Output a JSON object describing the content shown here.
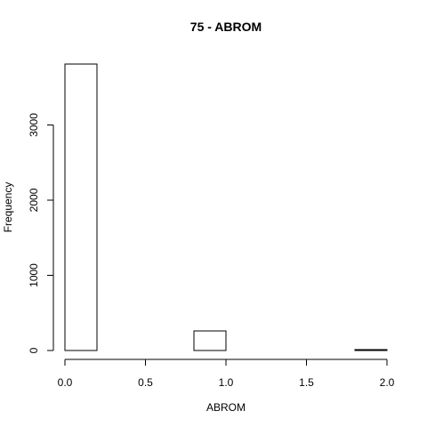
{
  "chart_data": {
    "type": "bar",
    "title": "75 - ABROM",
    "xlabel": "ABROM",
    "ylabel": "Frequency",
    "bins": [
      {
        "x0": 0.0,
        "x1": 0.2,
        "value": 3810
      },
      {
        "x0": 0.2,
        "x1": 0.4,
        "value": 0
      },
      {
        "x0": 0.4,
        "x1": 0.6,
        "value": 0
      },
      {
        "x0": 0.6,
        "x1": 0.8,
        "value": 0
      },
      {
        "x0": 0.8,
        "x1": 1.0,
        "value": 260
      },
      {
        "x0": 1.0,
        "x1": 1.2,
        "value": 0
      },
      {
        "x0": 1.2,
        "x1": 1.4,
        "value": 0
      },
      {
        "x0": 1.4,
        "x1": 1.6,
        "value": 0
      },
      {
        "x0": 1.6,
        "x1": 1.8,
        "value": 0
      },
      {
        "x0": 1.8,
        "x1": 2.0,
        "value": 12
      }
    ],
    "xlim": [
      0.0,
      2.0
    ],
    "ylim": [
      0,
      3810
    ],
    "x_ticks": [
      {
        "value": 0.0,
        "label": "0.0"
      },
      {
        "value": 0.5,
        "label": "0.5"
      },
      {
        "value": 1.0,
        "label": "1.0"
      },
      {
        "value": 1.5,
        "label": "1.5"
      },
      {
        "value": 2.0,
        "label": "2.0"
      }
    ],
    "y_ticks": [
      {
        "value": 0,
        "label": "0"
      },
      {
        "value": 1000,
        "label": "1000"
      },
      {
        "value": 2000,
        "label": "2000"
      },
      {
        "value": 3000,
        "label": "3000"
      }
    ],
    "grid": false,
    "legend": "none"
  }
}
